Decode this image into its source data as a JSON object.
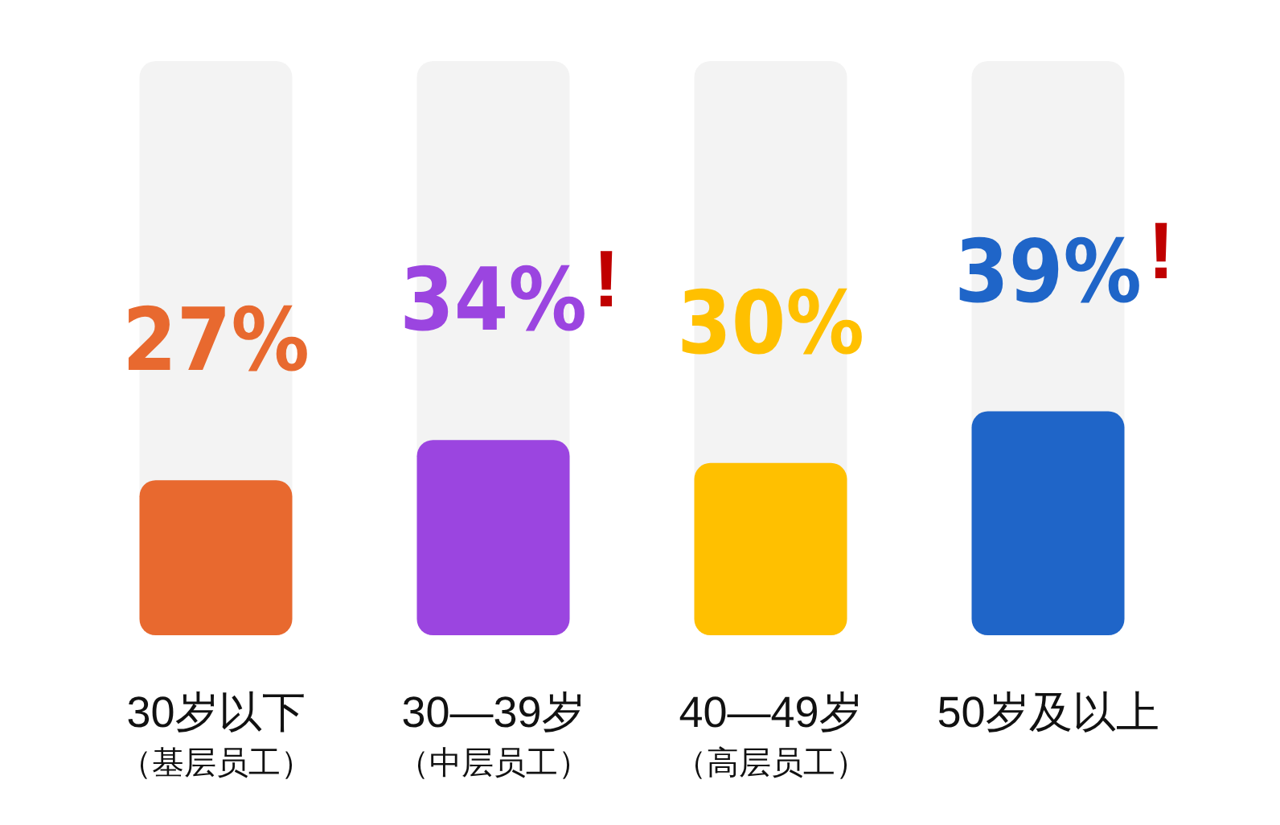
{
  "chart_data": {
    "type": "bar",
    "categories": [
      "30岁以下（基层员工）",
      "30—39岁（中层员工）",
      "40—49岁（高层员工）",
      "50岁及以上"
    ],
    "values": [
      27,
      34,
      30,
      39
    ],
    "colors": [
      "#e8692f",
      "#9b45e0",
      "#ffc000",
      "#1f65c8"
    ],
    "ylim": [
      0,
      100
    ],
    "tick_labels": "x",
    "value_labels": [
      "27%",
      "34%",
      "30%",
      "39%"
    ],
    "annotations": [
      {
        "text": "!",
        "x": "30—39岁（中层员工）",
        "y": 34
      },
      {
        "text": "!",
        "x": "50岁及以上",
        "y": 39
      }
    ]
  }
}
